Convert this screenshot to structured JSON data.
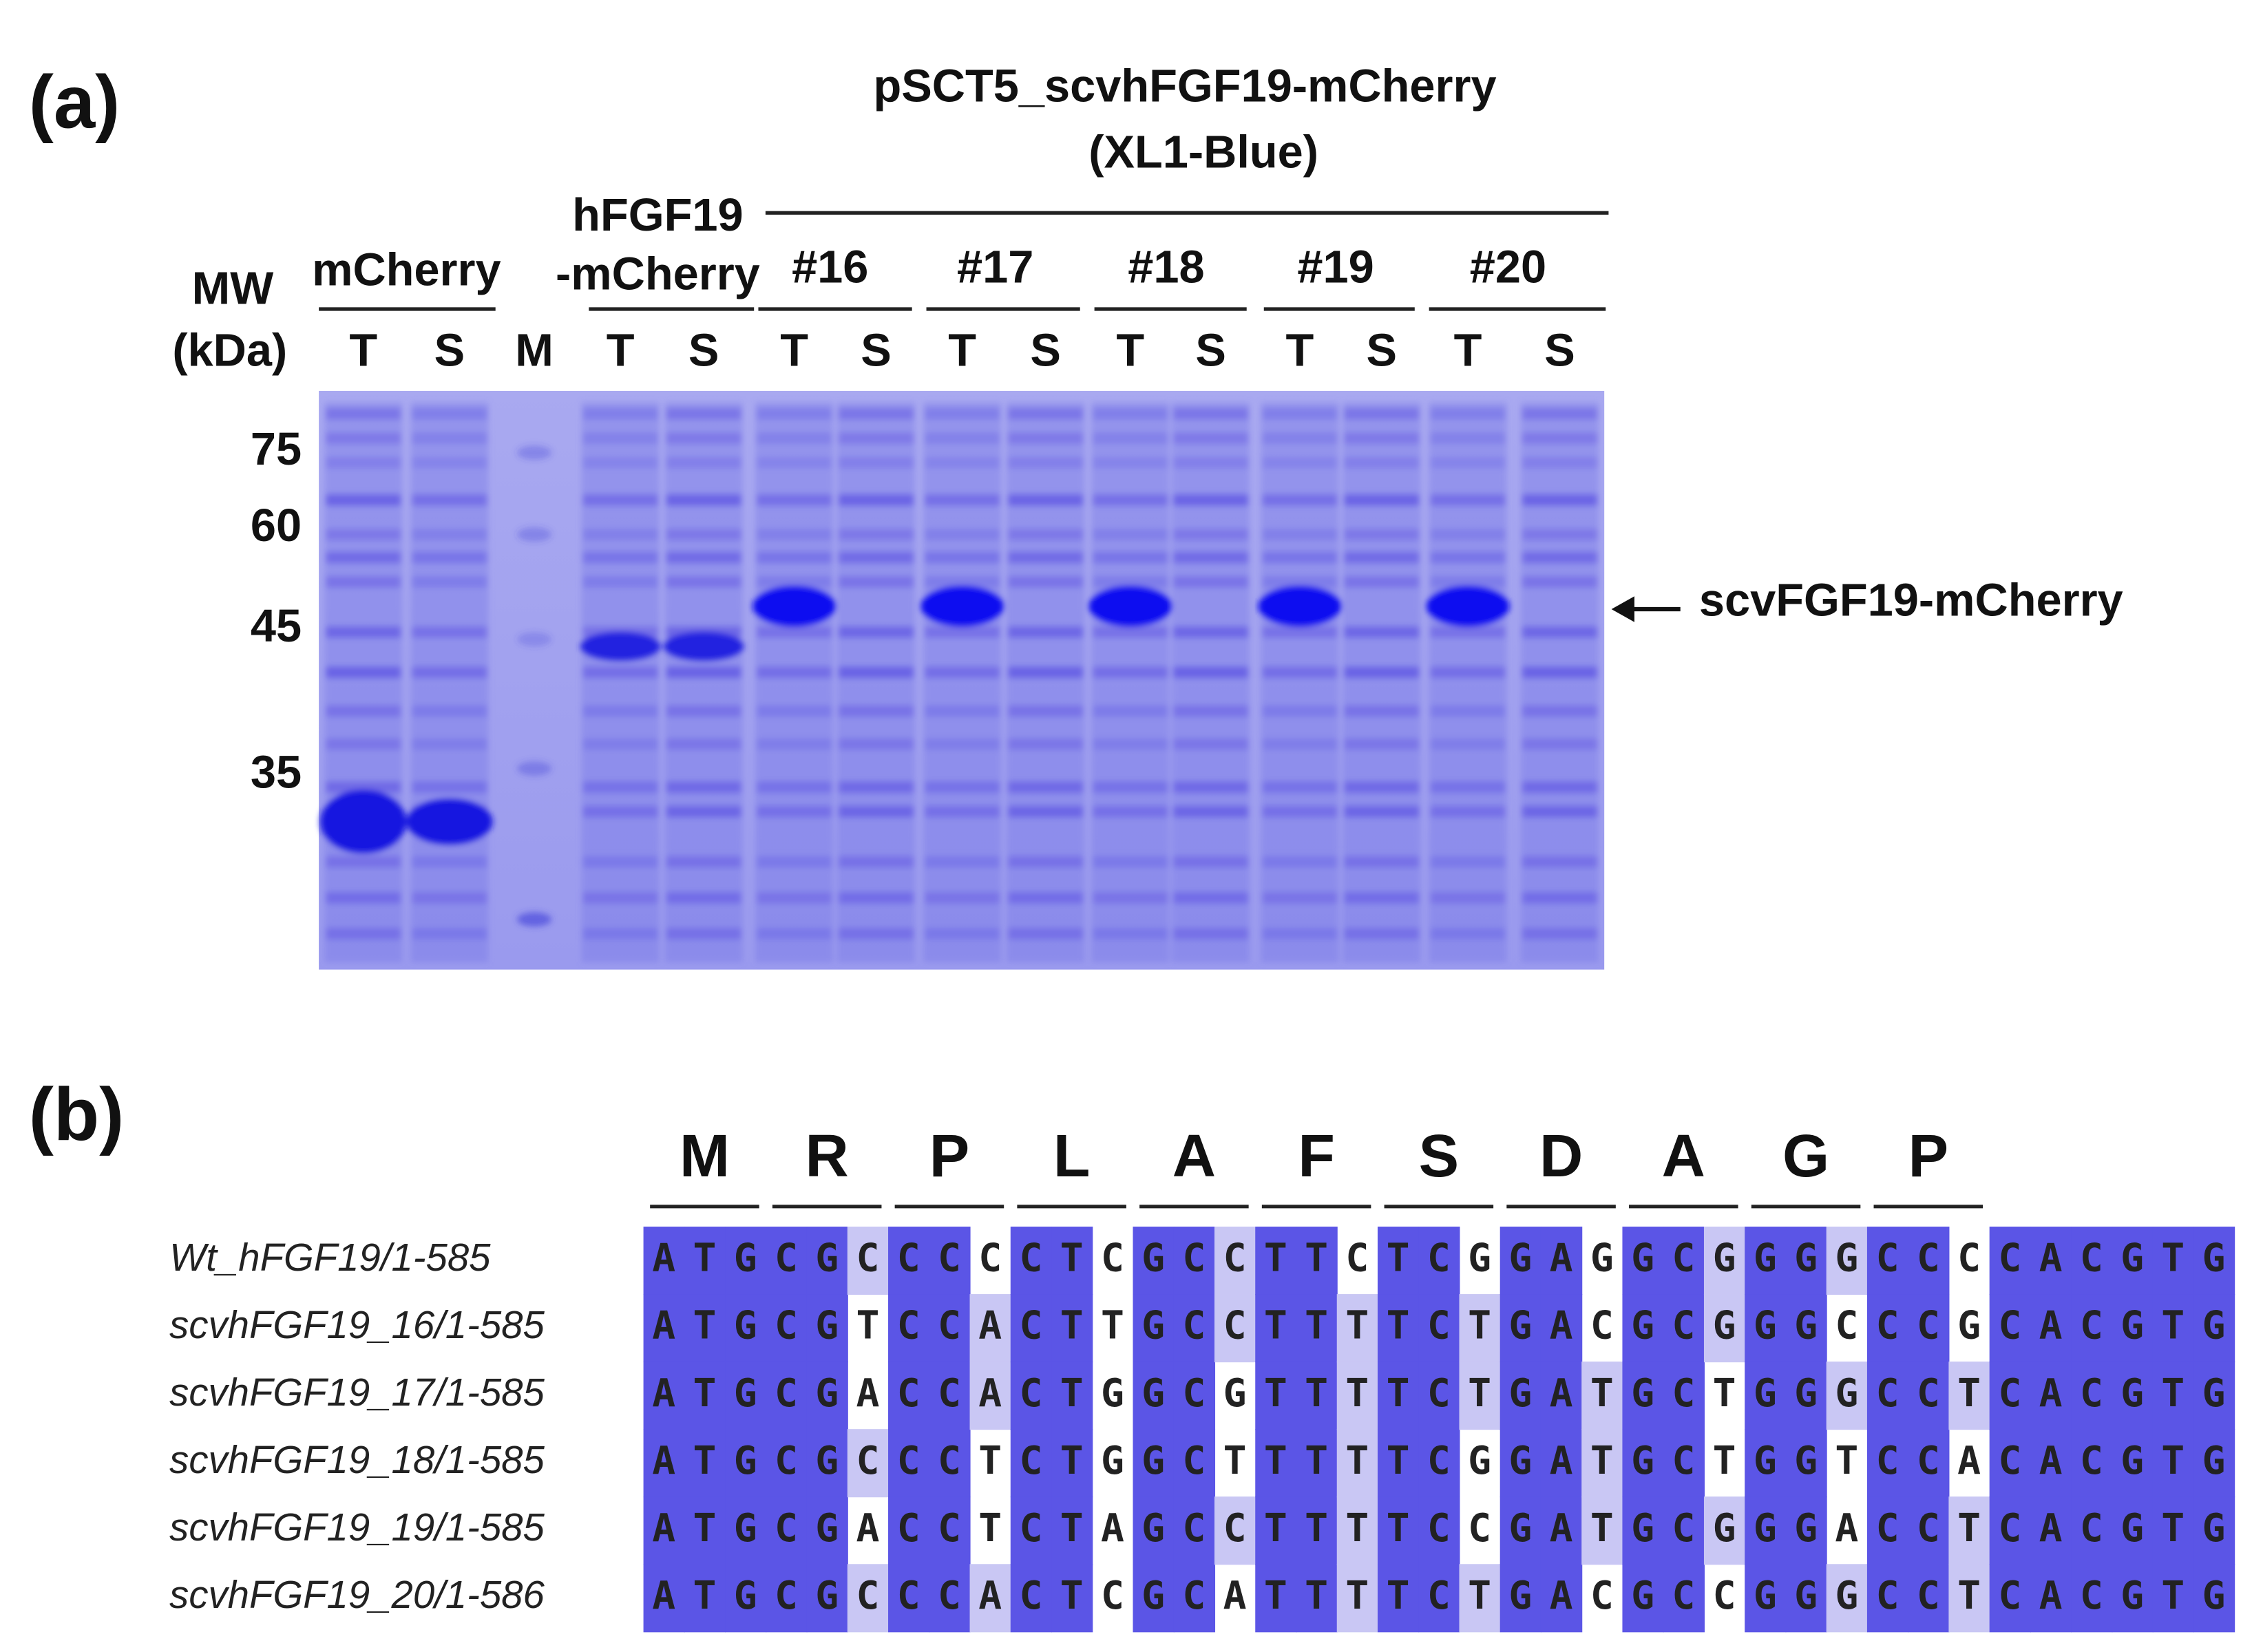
{
  "panel_a": {
    "label": "(a)",
    "construct": "pSCT5_scvhFGF19-mCherry",
    "strain": "(XL1-Blue)",
    "mw_header": [
      "MW",
      "(kDa)"
    ],
    "groups": [
      [
        "mCherry"
      ],
      [
        "hFGF19",
        "-mCherry"
      ],
      [
        "#16"
      ],
      [
        "#17"
      ],
      [
        "#18"
      ],
      [
        "#19"
      ],
      [
        "#20"
      ]
    ],
    "lane_labels": [
      "T",
      "S",
      "M",
      "T",
      "S",
      "T",
      "S",
      "T",
      "S",
      "T",
      "S",
      "T",
      "S",
      "T",
      "S"
    ],
    "mw_markers": [
      "75",
      "60",
      "45",
      "35"
    ],
    "arrow_label": "scvFGF19-mCherry"
  },
  "panel_b": {
    "label": "(b)",
    "amino_acids": [
      "M",
      "R",
      "P",
      "L",
      "A",
      "F",
      "S",
      "D",
      "A",
      "G",
      "P"
    ],
    "sequences": [
      {
        "name": "Wt_hFGF19/1-585",
        "seq": "ATGCGCCCCCTCGCCTTCTCGGAGGCGGGGCCCCACGTG"
      },
      {
        "name": "scvhFGF19_16/1-585",
        "seq": "ATGCGTCCACTTGCCTTTTCTGACGCGGGCCCGCACGTG"
      },
      {
        "name": "scvhFGF19_17/1-585",
        "seq": "ATGCGACCACTGGCGTTTTCTGATGCTGGGCCTCACGTG"
      },
      {
        "name": "scvhFGF19_18/1-585",
        "seq": "ATGCGCCCTCTGGCTTTTTCGGATGCTGGTCCACACGTG"
      },
      {
        "name": "scvhFGF19_19/1-585",
        "seq": "ATGCGACCTCTAGCCTTTTCCGATGCGGGACCTCACGTG"
      },
      {
        "name": "scvhFGF19_20/1-586",
        "seq": "ATGCGCCCACTCGCATTTTCTGACGCCGGGCCTCACGTG"
      }
    ]
  }
}
